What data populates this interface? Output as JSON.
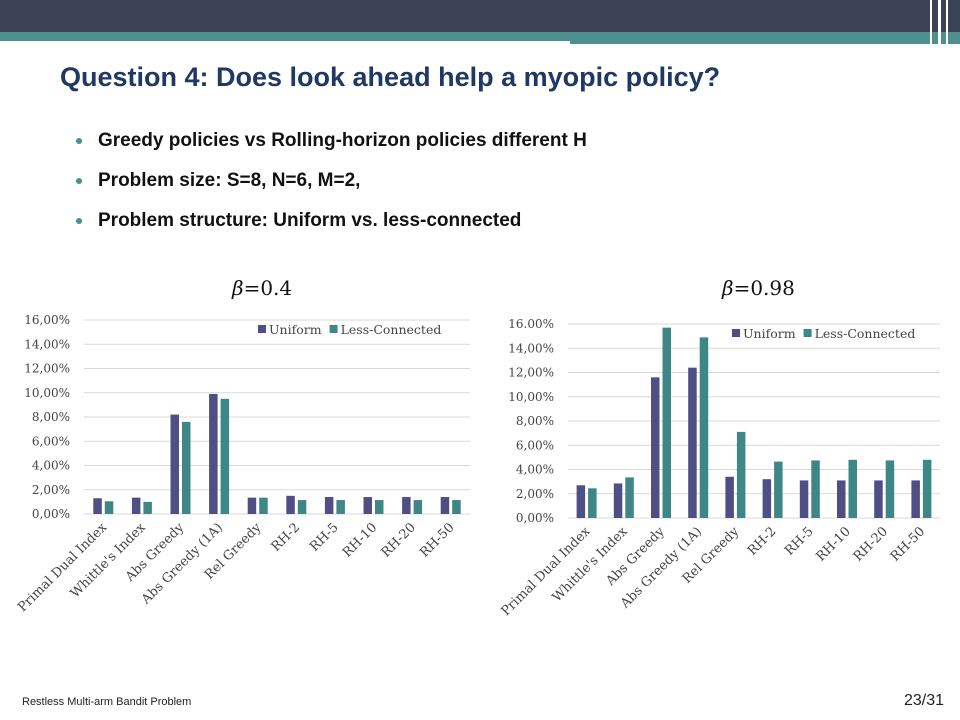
{
  "slide": {
    "title": "Question 4: Does look ahead help a myopic policy?",
    "bullets": [
      "Greedy policies vs Rolling-horizon policies different H",
      "Problem size: S=8, N=6, M=2,",
      "Problem structure: Uniform vs. less-connected"
    ],
    "footer_text": "Restless Multi-arm Bandit Problem",
    "page_number": "23/31"
  },
  "colors": {
    "uniform": "#4f4f86",
    "less_connected": "#3f8787",
    "title": "#1f3864",
    "accent": "#4e8f8f"
  },
  "chart_data": [
    {
      "type": "bar",
      "label_symbol": "β",
      "label_value": "=0.4",
      "categories": [
        "Primal Dual Index",
        "Whittle's Index",
        "Abs Greedy",
        "Abs Greedy (1A)",
        "Rel Greedy",
        "RH-2",
        "RH-5",
        "RH-10",
        "RH-20",
        "RH-50"
      ],
      "series": [
        {
          "name": "Uniform",
          "values": [
            1.3,
            1.35,
            8.2,
            9.9,
            1.35,
            1.5,
            1.4,
            1.4,
            1.4,
            1.4
          ]
        },
        {
          "name": "Less-Connected",
          "values": [
            1.05,
            1.0,
            7.6,
            9.5,
            1.35,
            1.15,
            1.15,
            1.15,
            1.15,
            1.15
          ]
        }
      ],
      "yticks": [
        "0,00%",
        "2,00%",
        "4,00%",
        "6,00%",
        "8,00%",
        "10,00%",
        "12,00%",
        "14,00%",
        "16,00%"
      ],
      "ylim": [
        0,
        16
      ],
      "grid": true,
      "legend_position": "top-right"
    },
    {
      "type": "bar",
      "label_symbol": "β",
      "label_value": "=0.98",
      "categories": [
        "Primal Dual Index",
        "Whittle's Index",
        "Abs Greedy",
        "Abs Greedy (1A)",
        "Rel Greedy",
        "RH-2",
        "RH-5",
        "RH-10",
        "RH-20",
        "RH-50"
      ],
      "series": [
        {
          "name": "Uniform",
          "values": [
            2.7,
            2.85,
            11.6,
            12.4,
            3.4,
            3.2,
            3.1,
            3.1,
            3.1,
            3.1
          ]
        },
        {
          "name": "Less-Connected",
          "values": [
            2.45,
            3.35,
            15.7,
            14.9,
            7.1,
            4.65,
            4.75,
            4.8,
            4.75,
            4.8
          ]
        }
      ],
      "yticks": [
        "0,00%",
        "2,00%",
        "4,00%",
        "6,00%",
        "8,00%",
        "10,00%",
        "12,00%",
        "14,00%",
        "16.00%"
      ],
      "ylim": [
        0,
        16
      ],
      "grid": true,
      "legend_position": "top-right"
    }
  ]
}
